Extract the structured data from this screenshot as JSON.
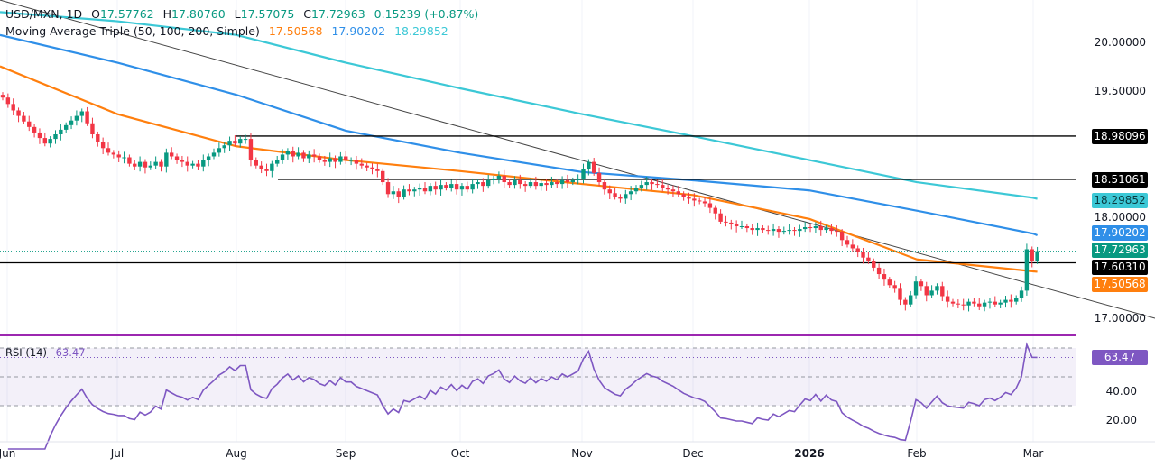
{
  "header": {
    "symbol": "USD/MXN, 1D",
    "open_label": "O",
    "open": "17.57762",
    "high_label": "H",
    "high": "17.80760",
    "low_label": "L",
    "low": "17.57075",
    "close_label": "C",
    "close": "17.72963",
    "change": "0.15239 (+0.87%)",
    "ma_title": "Moving Average Triple (50, 100, 200, Simple)",
    "ma50": "17.50568",
    "ma100": "17.90202",
    "ma200": "18.29852"
  },
  "rsi_header": {
    "title": "RSI (14)",
    "value": "63.47"
  },
  "colors": {
    "up": "#089981",
    "down": "#f23645",
    "ma50": "#ff7f0e",
    "ma100": "#2f8fe8",
    "ma200": "#3cc8d6",
    "rsi": "#7e57c2",
    "level": "#000000"
  },
  "chart_data": {
    "type": "candlestick",
    "series_name": "USD/MXN",
    "ylim": [
      16.8,
      20.4
    ],
    "price_ticks": [
      "20.00000",
      "19.50000",
      "18.00000",
      "17.00000"
    ],
    "x_ticks": [
      "Jun",
      "Jul",
      "Aug",
      "Sep",
      "Oct",
      "Nov",
      "Dec",
      "2026",
      "Feb",
      "Mar"
    ],
    "closes": [
      19.4,
      19.33,
      19.26,
      19.2,
      19.14,
      19.08,
      19.02,
      18.96,
      18.9,
      18.95,
      19.0,
      19.05,
      19.1,
      19.15,
      19.2,
      19.25,
      19.12,
      19.0,
      18.92,
      18.85,
      18.8,
      18.78,
      18.75,
      18.75,
      18.68,
      18.65,
      18.7,
      18.64,
      18.66,
      18.7,
      18.65,
      18.8,
      18.76,
      18.72,
      18.7,
      18.66,
      18.68,
      18.65,
      18.72,
      18.76,
      18.8,
      18.85,
      18.88,
      18.93,
      18.9,
      18.95,
      18.95,
      18.72,
      18.66,
      18.62,
      18.6,
      18.68,
      18.72,
      18.78,
      18.82,
      18.76,
      18.8,
      18.74,
      18.78,
      18.76,
      18.72,
      18.7,
      18.74,
      18.7,
      18.76,
      18.72,
      18.72,
      18.68,
      18.66,
      18.64,
      18.62,
      18.6,
      18.48,
      18.35,
      18.38,
      18.32,
      18.4,
      18.38,
      18.4,
      18.42,
      18.38,
      18.44,
      18.4,
      18.45,
      18.42,
      18.46,
      18.4,
      18.44,
      18.4,
      18.46,
      18.48,
      18.44,
      18.5,
      18.52,
      18.55,
      18.48,
      18.45,
      18.5,
      18.46,
      18.44,
      18.48,
      18.44,
      18.47,
      18.45,
      18.48,
      18.46,
      18.5,
      18.48,
      18.5,
      18.52,
      18.62,
      18.7,
      18.58,
      18.48,
      18.4,
      18.36,
      18.32,
      18.3,
      18.35,
      18.38,
      18.42,
      18.45,
      18.48,
      18.46,
      18.45,
      18.42,
      18.4,
      18.38,
      18.35,
      18.32,
      18.3,
      18.28,
      18.27,
      18.25,
      18.2,
      18.14,
      18.05,
      18.04,
      18.02,
      18.0,
      18.0,
      17.98,
      17.96,
      17.98,
      17.96,
      17.95,
      17.97,
      17.94,
      17.95,
      17.96,
      17.95,
      17.97,
      17.99,
      17.98,
      18.0,
      17.96,
      17.98,
      17.95,
      17.94,
      17.85,
      17.8,
      17.76,
      17.72,
      17.66,
      17.62,
      17.55,
      17.48,
      17.42,
      17.36,
      17.32,
      17.2,
      17.15,
      17.25,
      17.4,
      17.35,
      17.25,
      17.3,
      17.35,
      17.24,
      17.18,
      17.16,
      17.15,
      17.14,
      17.18,
      17.16,
      17.13,
      17.17,
      17.18,
      17.15,
      17.17,
      17.2,
      17.18,
      17.22,
      17.3,
      17.75,
      17.62,
      17.73
    ],
    "moving_averages": [
      {
        "name": "MA 50",
        "at_month_ticks": [
          19.74,
          19.22,
          18.87,
          18.72,
          18.6,
          18.46,
          18.34,
          18.08,
          17.64,
          17.51
        ],
        "last": 17.50568
      },
      {
        "name": "MA 100",
        "at_month_ticks": [
          20.08,
          19.78,
          19.43,
          19.04,
          18.8,
          18.59,
          18.5,
          18.39,
          18.17,
          17.92
        ],
        "last": 17.90202
      },
      {
        "name": "MA 200",
        "at_month_ticks": [
          20.33,
          20.23,
          20.08,
          19.78,
          19.5,
          19.22,
          18.98,
          18.72,
          18.48,
          18.31
        ],
        "last": 18.29852
      }
    ],
    "horizontal_levels": [
      "18.98096",
      "18.51061",
      "17.60310"
    ],
    "last_price": "17.72963",
    "trendline": {
      "start_price": 20.46,
      "end_price": 17.0
    },
    "rsi": {
      "period": 14,
      "last": 63.47,
      "ticks": [
        "40.00",
        "20.00"
      ],
      "bands": [
        30,
        50,
        70
      ]
    }
  }
}
